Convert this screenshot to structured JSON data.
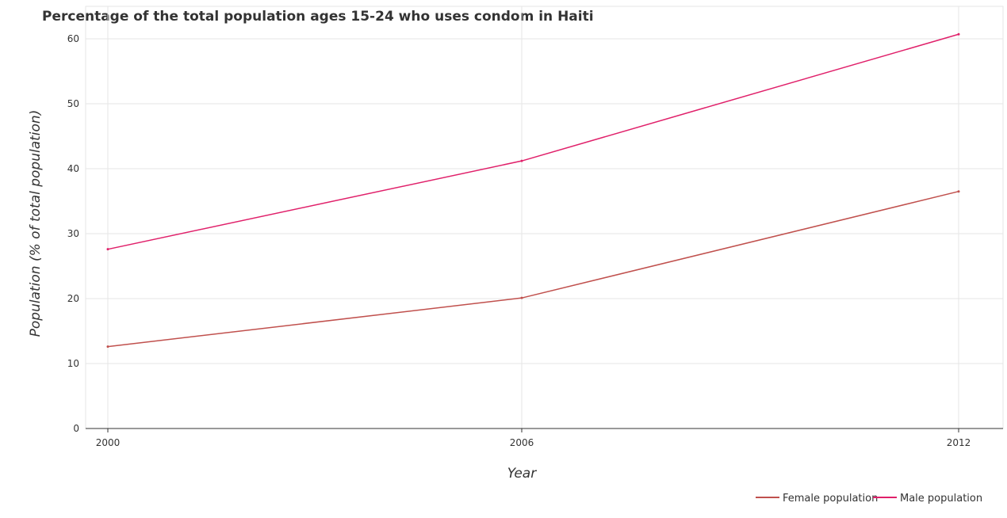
{
  "chart_data": {
    "type": "line",
    "title": "Percentage of the total population ages 15-24 who uses condom in Haiti",
    "xlabel": "Year",
    "ylabel": "Population (% of total population)",
    "x": [
      "2000",
      "2006",
      "2012"
    ],
    "series": [
      {
        "name": "Female population",
        "color": "#c0504d",
        "values": [
          12.6,
          20.1,
          36.5
        ]
      },
      {
        "name": "Male population",
        "color": "#e0206a",
        "values": [
          27.6,
          41.2,
          60.7
        ]
      }
    ],
    "ylim": [
      0,
      65
    ],
    "yticks": [
      0,
      10,
      20,
      30,
      40,
      50,
      60
    ],
    "grid": true,
    "legend_position": "bottom-right"
  }
}
